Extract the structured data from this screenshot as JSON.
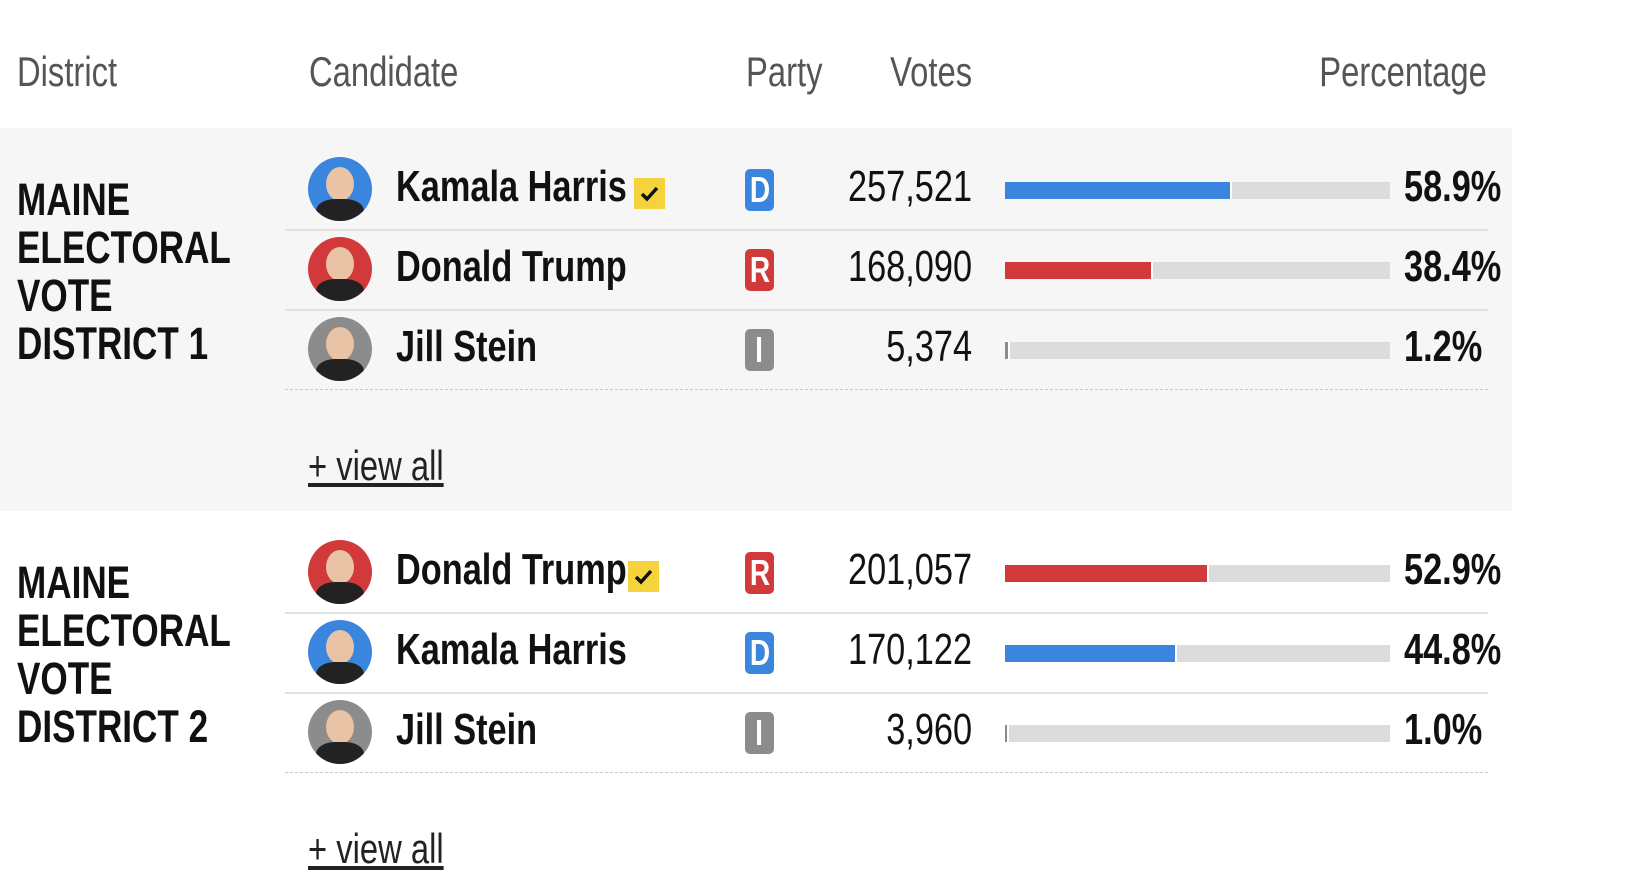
{
  "header": {
    "columns": [
      "District",
      "Candidate",
      "Party",
      "Votes",
      "Percentage"
    ]
  },
  "party_colors": {
    "D": "#3a86df",
    "R": "#d1393a",
    "I": "#8c8c8c"
  },
  "districts": [
    {
      "name": "MAINE ELECTORAL VOTE DISTRICT 1",
      "shaded": true,
      "view_all": "+ view all",
      "candidates": [
        {
          "name": "Kamala Harris",
          "winner": true,
          "party": "D",
          "votes": "257,521",
          "percent": {
            "value": 58.9,
            "label": "58.9%"
          }
        },
        {
          "name": "Donald Trump",
          "winner": false,
          "party": "R",
          "votes": "168,090",
          "percent": {
            "value": 38.4,
            "label": "38.4%"
          }
        },
        {
          "name": "Jill Stein",
          "winner": false,
          "party": "I",
          "votes": "5,374",
          "percent": {
            "value": 1.2,
            "label": "1.2%"
          }
        }
      ]
    },
    {
      "name": "MAINE ELECTORAL VOTE DISTRICT 2",
      "shaded": false,
      "view_all": "+ view all",
      "candidates": [
        {
          "name": "Donald Trump",
          "winner": true,
          "party": "R",
          "votes": "201,057",
          "percent": {
            "value": 52.9,
            "label": "52.9%"
          }
        },
        {
          "name": "Kamala Harris",
          "winner": false,
          "party": "D",
          "votes": "170,122",
          "percent": {
            "value": 44.8,
            "label": "44.8%"
          }
        },
        {
          "name": "Jill Stein",
          "winner": false,
          "party": "I",
          "votes": "3,960",
          "percent": {
            "value": 1.0,
            "label": "1.0%"
          }
        }
      ]
    }
  ]
}
